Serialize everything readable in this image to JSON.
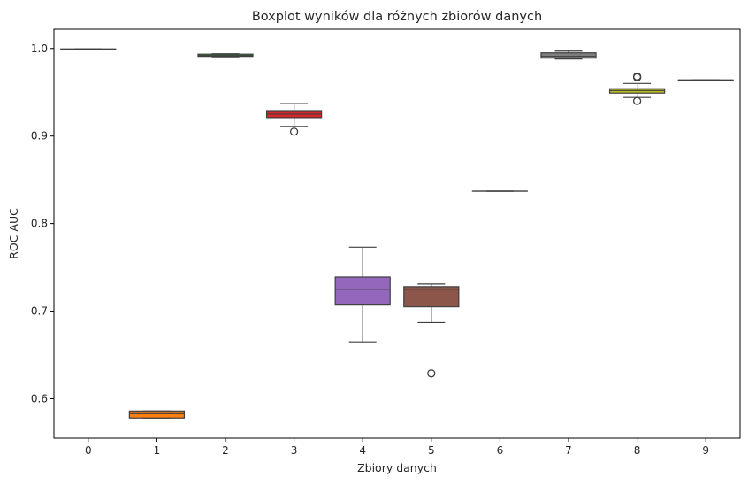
{
  "chart_data": {
    "type": "boxplot",
    "title": "Boxplot wyników dla różnych zbiorów danych",
    "xlabel": "Zbiory danych",
    "ylabel": "ROC AUC",
    "ylim": [
      0.555,
      1.022
    ],
    "yticks": [
      0.6,
      0.7,
      0.8,
      0.9,
      1.0
    ],
    "ytick_labels": [
      "0.6",
      "0.7",
      "0.8",
      "0.9",
      "1.0"
    ],
    "categories": [
      "0",
      "1",
      "2",
      "3",
      "4",
      "5",
      "6",
      "7",
      "8",
      "9"
    ],
    "grid": false,
    "boxes": [
      {
        "category": "0",
        "whisker_low": 0.9985,
        "q1": 0.9985,
        "median": 0.999,
        "q3": 0.9995,
        "whisker_high": 0.9995,
        "outliers": [],
        "color": "#1f77b4"
      },
      {
        "category": "1",
        "whisker_low": 0.578,
        "q1": 0.578,
        "median": 0.583,
        "q3": 0.586,
        "whisker_high": 0.586,
        "outliers": [],
        "color": "#ff7f0e"
      },
      {
        "category": "2",
        "whisker_low": 0.9905,
        "q1": 0.991,
        "median": 0.992,
        "q3": 0.9935,
        "whisker_high": 0.994,
        "outliers": [],
        "color": "#2ca02c"
      },
      {
        "category": "3",
        "whisker_low": 0.911,
        "q1": 0.921,
        "median": 0.925,
        "q3": 0.929,
        "whisker_high": 0.937,
        "outliers": [
          0.905
        ],
        "color": "#d62728"
      },
      {
        "category": "4",
        "whisker_low": 0.665,
        "q1": 0.707,
        "median": 0.725,
        "q3": 0.739,
        "whisker_high": 0.773,
        "outliers": [],
        "color": "#9467bd"
      },
      {
        "category": "5",
        "whisker_low": 0.687,
        "q1": 0.705,
        "median": 0.725,
        "q3": 0.728,
        "whisker_high": 0.731,
        "outliers": [
          0.629
        ],
        "color": "#8c564b"
      },
      {
        "category": "6",
        "whisker_low": 0.837,
        "q1": 0.837,
        "median": 0.837,
        "q3": 0.837,
        "whisker_high": 0.837,
        "outliers": [],
        "color": "#e377c2"
      },
      {
        "category": "7",
        "whisker_low": 0.988,
        "q1": 0.989,
        "median": 0.991,
        "q3": 0.995,
        "whisker_high": 0.997,
        "outliers": [],
        "color": "#7f7f7f"
      },
      {
        "category": "8",
        "whisker_low": 0.944,
        "q1": 0.949,
        "median": 0.952,
        "q3": 0.954,
        "whisker_high": 0.96,
        "outliers": [
          0.94,
          0.967,
          0.968
        ],
        "color": "#bcbd22"
      },
      {
        "category": "9",
        "whisker_low": 0.964,
        "q1": 0.964,
        "median": 0.964,
        "q3": 0.964,
        "whisker_high": 0.964,
        "outliers": [],
        "color": "#17becf"
      }
    ]
  }
}
